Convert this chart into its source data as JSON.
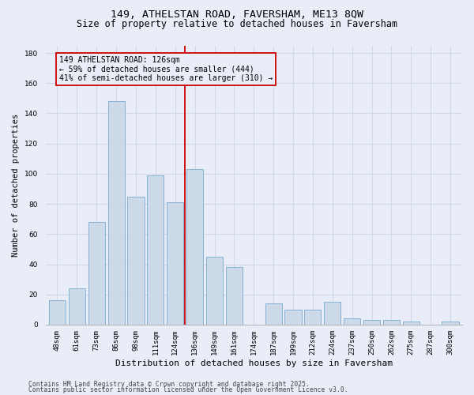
{
  "title": "149, ATHELSTAN ROAD, FAVERSHAM, ME13 8QW",
  "subtitle": "Size of property relative to detached houses in Faversham",
  "xlabel": "Distribution of detached houses by size in Faversham",
  "ylabel": "Number of detached properties",
  "categories": [
    "48sqm",
    "61sqm",
    "73sqm",
    "86sqm",
    "98sqm",
    "111sqm",
    "124sqm",
    "136sqm",
    "149sqm",
    "161sqm",
    "174sqm",
    "187sqm",
    "199sqm",
    "212sqm",
    "224sqm",
    "237sqm",
    "250sqm",
    "262sqm",
    "275sqm",
    "287sqm",
    "300sqm"
  ],
  "values": [
    16,
    24,
    68,
    148,
    85,
    99,
    81,
    103,
    45,
    38,
    0,
    14,
    10,
    10,
    15,
    4,
    3,
    3,
    2,
    0,
    2
  ],
  "bar_color": "#ccd9e8",
  "bar_edge_color": "#7aaacf",
  "bg_color": "#e8edf8",
  "grid_color": "#d0d8ea",
  "vline_color": "#cc0000",
  "vline_position": 6.5,
  "annotation_text": "149 ATHELSTAN ROAD: 126sqm\n← 59% of detached houses are smaller (444)\n41% of semi-detached houses are larger (310) →",
  "ann_box_edge_color": "#cc0000",
  "ann_box_face_color": "#e8edf8",
  "ylim_max": 185,
  "yticks": [
    0,
    20,
    40,
    60,
    80,
    100,
    120,
    140,
    160,
    180
  ],
  "title_fs": 9.5,
  "subtitle_fs": 8.5,
  "xlabel_fs": 8,
  "ylabel_fs": 7.5,
  "tick_fs": 6.5,
  "ann_fs": 7,
  "footnote1": "Contains HM Land Registry data © Crown copyright and database right 2025.",
  "footnote2": "Contains public sector information licensed under the Open Government Licence v3.0."
}
